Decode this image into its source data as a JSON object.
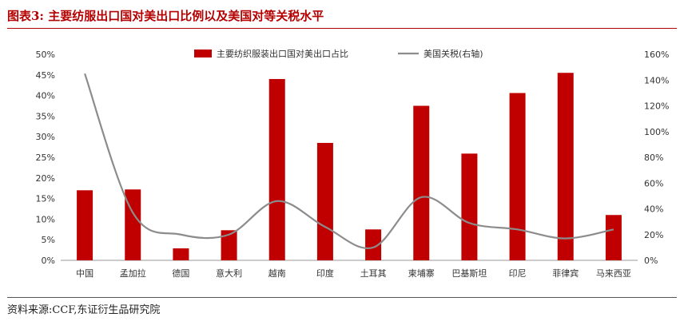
{
  "figure": {
    "title": "图表3:  主要纺服出口国对美出口比例以及美国对等关税水平",
    "source": "资料来源:CCF,东证衍生品研究院"
  },
  "colors": {
    "bar": "#c00000",
    "line": "#8c8c8c",
    "title": "#b40000"
  },
  "chart_data": {
    "type": "bar",
    "categories": [
      "中国",
      "孟加拉",
      "德国",
      "意大利",
      "越南",
      "印度",
      "土耳其",
      "柬埔寨",
      "巴基斯坦",
      "印尼",
      "菲律宾",
      "马来西亚"
    ],
    "series": [
      {
        "name": "主要纺织服装出口国对美出口占比",
        "type": "bar",
        "axis": "left",
        "values": [
          17.0,
          17.2,
          2.9,
          7.3,
          44.0,
          28.5,
          7.5,
          37.5,
          25.9,
          40.6,
          45.5,
          11.0
        ]
      },
      {
        "name": "美国关税(右轴)",
        "type": "line",
        "smooth": true,
        "axis": "right",
        "values": [
          145,
          37,
          20,
          20,
          46,
          26,
          10,
          49,
          29,
          24,
          17,
          24
        ]
      }
    ],
    "y_left": {
      "ylim": [
        0,
        50
      ],
      "ticks": [
        0,
        5,
        10,
        15,
        20,
        25,
        30,
        35,
        40,
        45,
        50
      ],
      "tick_labels": [
        "0%",
        "5%",
        "10%",
        "15%",
        "20%",
        "25%",
        "30%",
        "35%",
        "40%",
        "45%",
        "50%"
      ]
    },
    "y_right": {
      "ylim": [
        0,
        160
      ],
      "ticks": [
        0,
        20,
        40,
        60,
        80,
        100,
        120,
        140,
        160
      ],
      "tick_labels": [
        "0%",
        "20%",
        "40%",
        "60%",
        "80%",
        "100%",
        "120%",
        "140%",
        "160%"
      ]
    },
    "legend_position": "top-center",
    "grid": false
  }
}
